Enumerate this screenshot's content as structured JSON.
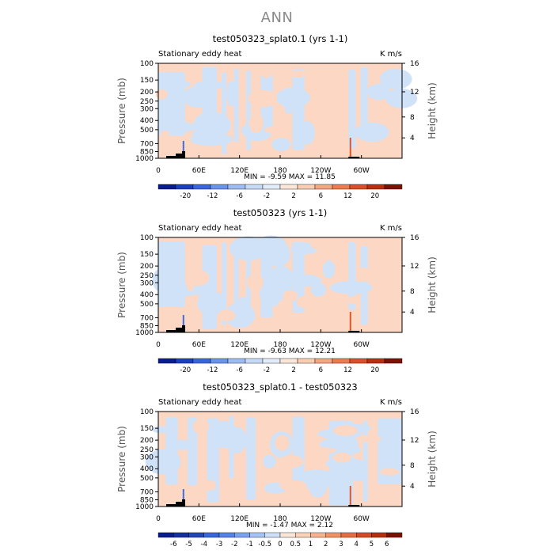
{
  "page": {
    "title": "ANN"
  },
  "colors": {
    "warm_fill": "#fcd8c4",
    "cool_fill": "#cfe2f7",
    "warm_accent": "#e2552b",
    "cool_accent": "#3f6fd9",
    "topography": "#000000"
  },
  "chart_data": [
    {
      "type": "heatmap",
      "title": "test050323_splat0.1 (yrs 1-1)",
      "left_label": "Stationary eddy heat",
      "unit_label": "K m/s",
      "xlabel": "",
      "ylabel": "Pressure (mb)",
      "y2label": "Height (km)",
      "x_ticks": [
        "0",
        "60E",
        "120E",
        "180",
        "120W",
        "60W"
      ],
      "y_ticks": [
        "100",
        "150",
        "200",
        "250",
        "300",
        "400",
        "500",
        "700",
        "850",
        "1000"
      ],
      "y2_ticks": [
        "16",
        "12",
        "8",
        "4"
      ],
      "stats": {
        "min_label": "MIN =",
        "min": "-9.59",
        "max_label": "MAX =",
        "max": "11.85"
      },
      "colorbar_labels": [
        "-20",
        "-12",
        "-6",
        "-2",
        "2",
        "6",
        "12",
        "20"
      ],
      "colorbar_colors": [
        "#0a1d8f",
        "#1a3fbf",
        "#3a66dc",
        "#6a93ea",
        "#9dbcf3",
        "#c6daf7",
        "#e2ecfa",
        "#fbe6d8",
        "#f8cdb1",
        "#f4a67f",
        "#ec7b4f",
        "#d9502a",
        "#b8300f",
        "#7a1306"
      ]
    },
    {
      "type": "heatmap",
      "title": "test050323 (yrs 1-1)",
      "left_label": "Stationary eddy heat",
      "unit_label": "K m/s",
      "xlabel": "",
      "ylabel": "Pressure (mb)",
      "y2label": "Height (km)",
      "x_ticks": [
        "0",
        "60E",
        "120E",
        "180",
        "120W",
        "60W"
      ],
      "y_ticks": [
        "100",
        "150",
        "200",
        "250",
        "300",
        "400",
        "500",
        "700",
        "850",
        "1000"
      ],
      "y2_ticks": [
        "16",
        "12",
        "8",
        "4"
      ],
      "stats": {
        "min_label": "MIN =",
        "min": "-9.63",
        "max_label": "MAX =",
        "max": "12.21"
      },
      "colorbar_labels": [
        "-20",
        "-12",
        "-6",
        "-2",
        "2",
        "6",
        "12",
        "20"
      ],
      "colorbar_colors": [
        "#0a1d8f",
        "#1a3fbf",
        "#3a66dc",
        "#6a93ea",
        "#9dbcf3",
        "#c6daf7",
        "#e2ecfa",
        "#fbe6d8",
        "#f8cdb1",
        "#f4a67f",
        "#ec7b4f",
        "#d9502a",
        "#b8300f",
        "#7a1306"
      ]
    },
    {
      "type": "heatmap",
      "title": "test050323_splat0.1 - test050323",
      "left_label": "Stationary eddy heat",
      "unit_label": "K m/s",
      "xlabel": "",
      "ylabel": "Pressure (mb)",
      "y2label": "Height (km)",
      "x_ticks": [
        "0",
        "60E",
        "120E",
        "180",
        "120W",
        "60W"
      ],
      "y_ticks": [
        "100",
        "150",
        "200",
        "250",
        "300",
        "400",
        "500",
        "700",
        "850",
        "1000"
      ],
      "y2_ticks": [
        "16",
        "12",
        "8",
        "4"
      ],
      "stats": {
        "min_label": "MIN =",
        "min": "-1.47",
        "max_label": "MAX =",
        "max": "2.12"
      },
      "colorbar_labels": [
        "-6",
        "-5",
        "-4",
        "-3",
        "-2",
        "-1",
        "-0.5",
        "0",
        "0.5",
        "1",
        "2",
        "3",
        "4",
        "5",
        "6"
      ],
      "colorbar_colors": [
        "#0a1d8f",
        "#15309f",
        "#2447b6",
        "#3a66dc",
        "#5582e6",
        "#7aa2ee",
        "#a5c3f5",
        "#cfe0f9",
        "#fbe6d8",
        "#f9d2b9",
        "#f5b48f",
        "#ef9366",
        "#e56f44",
        "#d24d27",
        "#b22f10",
        "#7a1306"
      ]
    }
  ]
}
